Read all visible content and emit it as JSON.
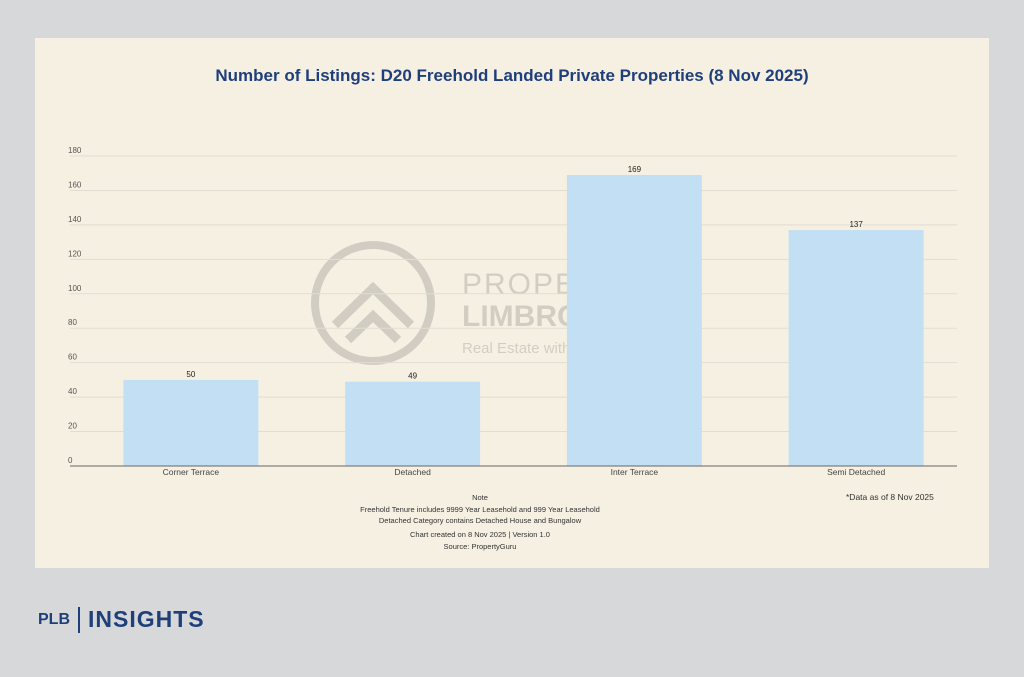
{
  "chart_data": {
    "type": "bar",
    "title": "Number of Listings: D20 Freehold Landed Private Properties (8 Nov 2025)",
    "categories": [
      "Corner Terrace",
      "Detached",
      "Inter Terrace",
      "Semi Detached"
    ],
    "values": [
      50,
      49,
      169,
      137
    ],
    "xlabel": "",
    "ylabel": "",
    "ylim": [
      0,
      180
    ],
    "yticks": [
      0,
      20,
      40,
      60,
      80,
      100,
      120,
      140,
      160,
      180
    ],
    "grid": true,
    "bar_color": "#c3dff4"
  },
  "notes": {
    "heading": "Note",
    "lines": [
      "Freehold Tenure includes 9999 Year Leasehold and 999 Year Leasehold",
      "Detached Category contains Detached House and Bungalow"
    ],
    "created": "Chart created on 8 Nov 2025 | Version 1.0",
    "source": "Source: PropertyGuru",
    "as_of": "*Data as of 8 Nov 2025"
  },
  "watermark": {
    "line1": "PROPERTY",
    "line2": "LIMBROTHERS",
    "line3": "Real Estate with Integrity"
  },
  "footer": {
    "plb": "PLB",
    "insights": "INSIGHTS"
  }
}
